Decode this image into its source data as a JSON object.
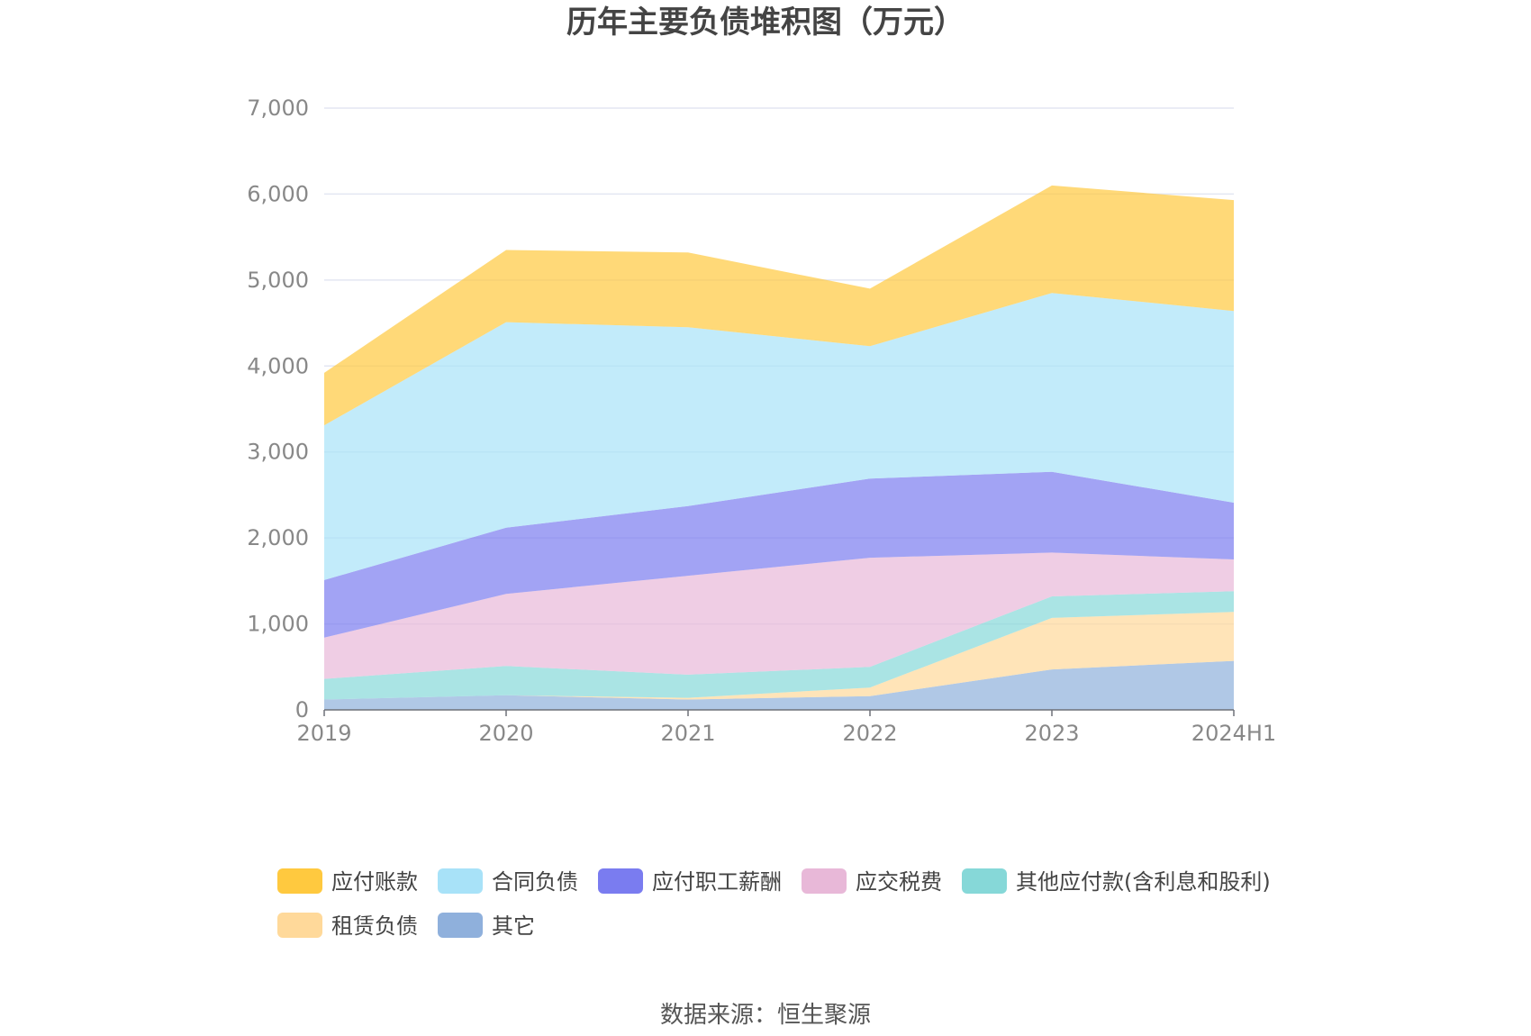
{
  "chart_data": {
    "type": "area",
    "stacked": true,
    "title": "历年主要负债堆积图（万元）",
    "source": "数据来源：恒生聚源",
    "categories": [
      "2019",
      "2020",
      "2021",
      "2022",
      "2023",
      "2024H1"
    ],
    "ylim": [
      0,
      7000
    ],
    "yticks": [
      "0",
      "1,000",
      "2,000",
      "3,000",
      "4,000",
      "5,000",
      "6,000",
      "7,000"
    ],
    "ytick_values": [
      0,
      1000,
      2000,
      3000,
      4000,
      5000,
      6000,
      7000
    ],
    "grid": true,
    "legend_position": "bottom",
    "series": [
      {
        "name": "其它",
        "color": "#8FB0DC",
        "values": [
          120,
          170,
          120,
          160,
          470,
          570
        ]
      },
      {
        "name": "租赁负债",
        "color": "#FFD99A",
        "values": [
          0,
          0,
          20,
          100,
          600,
          570
        ]
      },
      {
        "name": "其他应付款(含利息和股利)",
        "color": "#86D8D8",
        "values": [
          240,
          340,
          270,
          240,
          250,
          240
        ]
      },
      {
        "name": "应交税费",
        "color": "#E8B8D8",
        "values": [
          480,
          840,
          1150,
          1270,
          510,
          370
        ]
      },
      {
        "name": "应付职工薪酬",
        "color": "#7A7CF0",
        "values": [
          670,
          770,
          810,
          920,
          940,
          660
        ]
      },
      {
        "name": "合同负债",
        "color": "#A8E2F8",
        "values": [
          1800,
          2390,
          2080,
          1540,
          2080,
          2230
        ]
      },
      {
        "name": "应付账款",
        "color": "#FFC93F",
        "values": [
          610,
          840,
          870,
          670,
          1250,
          1290
        ]
      }
    ],
    "legend_order": [
      "应付账款",
      "合同负债",
      "应付职工薪酬",
      "应交税费",
      "其他应付款(含利息和股利)",
      "租赁负债",
      "其它"
    ]
  }
}
